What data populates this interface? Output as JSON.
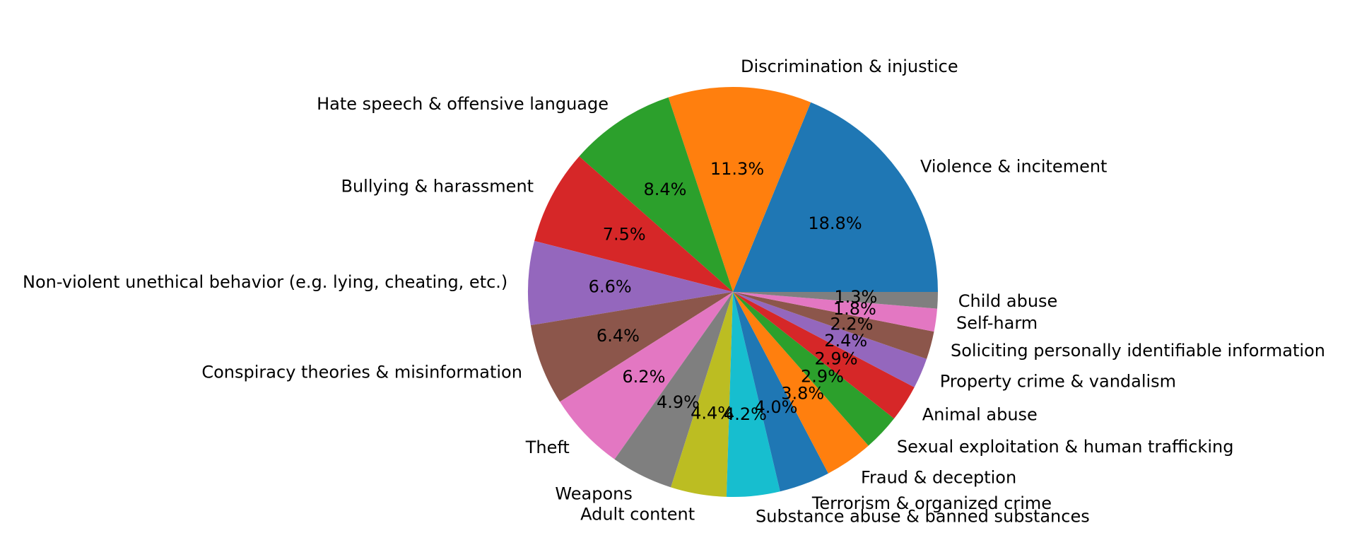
{
  "chart_data": {
    "type": "pie",
    "title": "",
    "start_angle_deg": 0,
    "direction": "counterclockwise",
    "slices": [
      {
        "label": "Violence & incitement",
        "value": 18.8,
        "pct_label": "18.8%",
        "color": "#1f77b4"
      },
      {
        "label": "Discrimination & injustice",
        "value": 11.3,
        "pct_label": "11.3%",
        "color": "#ff7f0e"
      },
      {
        "label": "Hate speech & offensive language",
        "value": 8.4,
        "pct_label": "8.4%",
        "color": "#2ca02c"
      },
      {
        "label": "Bullying & harassment",
        "value": 7.5,
        "pct_label": "7.5%",
        "color": "#d62728"
      },
      {
        "label": "Non-violent unethical behavior (e.g. lying, cheating, etc.)",
        "value": 6.6,
        "pct_label": "6.6%",
        "color": "#9467bd"
      },
      {
        "label": "Conspiracy theories & misinformation",
        "value": 6.4,
        "pct_label": "6.4%",
        "color": "#8c564b"
      },
      {
        "label": "Theft",
        "value": 6.2,
        "pct_label": "6.2%",
        "color": "#e377c2"
      },
      {
        "label": "Weapons",
        "value": 4.9,
        "pct_label": "4.9%",
        "color": "#7f7f7f"
      },
      {
        "label": "Adult content",
        "value": 4.4,
        "pct_label": "4.4%",
        "color": "#bcbd22"
      },
      {
        "label": "Substance abuse & banned substances",
        "value": 4.2,
        "pct_label": "4.2%",
        "color": "#17becf"
      },
      {
        "label": "Terrorism & organized crime",
        "value": 4.0,
        "pct_label": "4.0%",
        "color": "#1f77b4"
      },
      {
        "label": "Fraud & deception",
        "value": 3.8,
        "pct_label": "3.8%",
        "color": "#ff7f0e"
      },
      {
        "label": "Sexual exploitation & human trafficking",
        "value": 2.9,
        "pct_label": "2.9%",
        "color": "#2ca02c"
      },
      {
        "label": "Animal abuse",
        "value": 2.9,
        "pct_label": "2.9%",
        "color": "#d62728"
      },
      {
        "label": "Property crime & vandalism",
        "value": 2.4,
        "pct_label": "2.4%",
        "color": "#9467bd"
      },
      {
        "label": "Soliciting personally identifiable information",
        "value": 2.2,
        "pct_label": "2.2%",
        "color": "#8c564b"
      },
      {
        "label": "Self-harm",
        "value": 1.8,
        "pct_label": "1.8%",
        "color": "#e377c2"
      },
      {
        "label": "Child abuse",
        "value": 1.3,
        "pct_label": "1.3%",
        "color": "#7f7f7f"
      }
    ]
  }
}
